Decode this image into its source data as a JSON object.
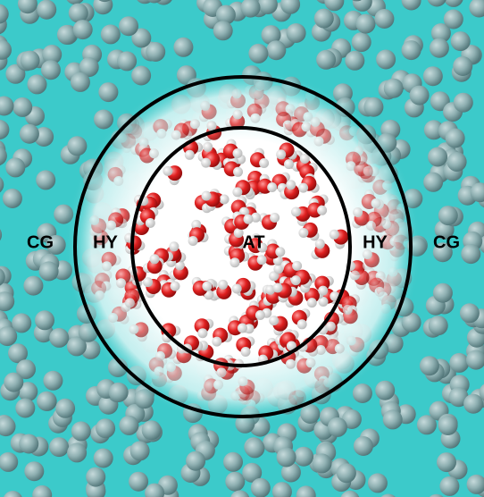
{
  "labels": [
    "CG",
    "HY",
    "AT",
    "HY",
    "CG"
  ]
}
